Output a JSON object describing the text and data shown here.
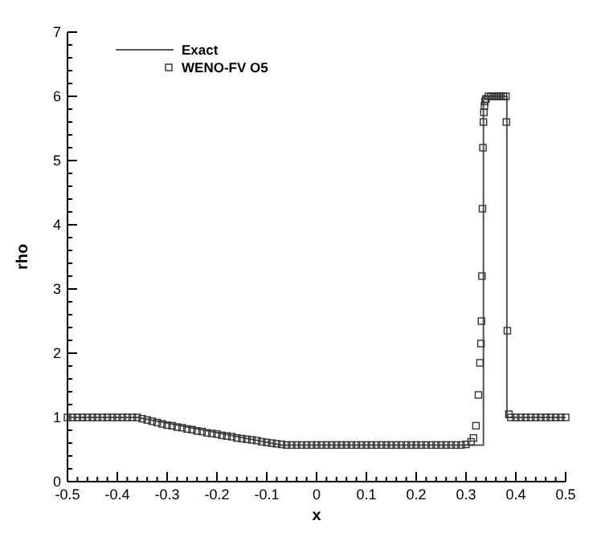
{
  "chart_data": {
    "type": "scatter",
    "xlabel": "x",
    "ylabel": "rho",
    "legend": "top left",
    "grid": false,
    "xlim": [
      -0.5,
      0.5
    ],
    "ylim": [
      0,
      7
    ],
    "xticks": [
      {
        "value": -0.5,
        "label": "-0.5"
      },
      {
        "value": -0.48,
        "label": null
      },
      {
        "value": -0.46,
        "label": null
      },
      {
        "value": -0.44,
        "label": null
      },
      {
        "value": -0.42,
        "label": null
      },
      {
        "value": -0.4,
        "label": "-0.4"
      },
      {
        "value": -0.38,
        "label": null
      },
      {
        "value": -0.36,
        "label": null
      },
      {
        "value": -0.34,
        "label": null
      },
      {
        "value": -0.32,
        "label": null
      },
      {
        "value": -0.3,
        "label": "-0.3"
      },
      {
        "value": -0.28,
        "label": null
      },
      {
        "value": -0.26,
        "label": null
      },
      {
        "value": -0.24,
        "label": null
      },
      {
        "value": -0.22,
        "label": null
      },
      {
        "value": -0.2,
        "label": "-0.2"
      },
      {
        "value": -0.18,
        "label": null
      },
      {
        "value": -0.16,
        "label": null
      },
      {
        "value": -0.14,
        "label": null
      },
      {
        "value": -0.12,
        "label": null
      },
      {
        "value": -0.1,
        "label": "-0.1"
      },
      {
        "value": -0.08,
        "label": null
      },
      {
        "value": -0.06,
        "label": null
      },
      {
        "value": -0.04,
        "label": null
      },
      {
        "value": -0.02,
        "label": null
      },
      0,
      {
        "value": 0.02,
        "label": null
      },
      {
        "value": 0.04,
        "label": null
      },
      {
        "value": 0.06,
        "label": null
      },
      {
        "value": 0.08,
        "label": null
      },
      0.1,
      {
        "value": 0.12,
        "label": null
      },
      {
        "value": 0.14,
        "label": null
      },
      {
        "value": 0.16,
        "label": null
      },
      {
        "value": 0.18,
        "label": null
      },
      0.2,
      {
        "value": 0.22,
        "label": null
      },
      {
        "value": 0.24,
        "label": null
      },
      {
        "value": 0.26,
        "label": null
      },
      {
        "value": 0.28,
        "label": null
      },
      0.3,
      {
        "value": 0.32,
        "label": null
      },
      {
        "value": 0.34,
        "label": null
      },
      {
        "value": 0.36,
        "label": null
      },
      {
        "value": 0.38,
        "label": null
      },
      0.4,
      {
        "value": 0.42,
        "label": null
      },
      {
        "value": 0.44,
        "label": null
      },
      {
        "value": 0.46,
        "label": null
      },
      {
        "value": 0.48,
        "label": null
      },
      0.5
    ],
    "yticks": [
      0,
      {
        "value": 0.2,
        "label": null
      },
      {
        "value": 0.4,
        "label": null
      },
      {
        "value": 0.6,
        "label": null
      },
      {
        "value": 0.8,
        "label": null
      },
      1,
      {
        "value": 1.2,
        "label": null
      },
      {
        "value": 1.4,
        "label": null
      },
      {
        "value": 1.6,
        "label": null
      },
      {
        "value": 1.8,
        "label": null
      },
      2,
      {
        "value": 2.2,
        "label": null
      },
      {
        "value": 2.4,
        "label": null
      },
      {
        "value": 2.6,
        "label": null
      },
      {
        "value": 2.8,
        "label": null
      },
      3,
      {
        "value": 3.2,
        "label": null
      },
      {
        "value": 3.4,
        "label": null
      },
      {
        "value": 3.6,
        "label": null
      },
      {
        "value": 3.8,
        "label": null
      },
      4,
      {
        "value": 4.2,
        "label": null
      },
      {
        "value": 4.4,
        "label": null
      },
      {
        "value": 4.6,
        "label": null
      },
      {
        "value": 4.8,
        "label": null
      },
      5,
      {
        "value": 5.2,
        "label": null
      },
      {
        "value": 5.4,
        "label": null
      },
      {
        "value": 5.6,
        "label": null
      },
      {
        "value": 5.8,
        "label": null
      },
      6,
      {
        "value": 6.2,
        "label": null
      },
      {
        "value": 6.4,
        "label": null
      },
      {
        "value": 6.6,
        "label": null
      },
      {
        "value": 6.8,
        "label": null
      },
      7
    ],
    "series": [
      {
        "name": "Exact",
        "type": "line",
        "color": "#555555",
        "line_style": "solid",
        "marker": "none",
        "x": [
          -0.5,
          -0.36,
          -0.07,
          0.335,
          0.335,
          0.382,
          0.382,
          0.5
        ],
        "values": [
          1,
          1,
          0.57,
          0.57,
          6,
          6,
          1,
          1
        ]
      },
      {
        "name": "WENO-FV O5",
        "color": "#333333",
        "marker": "square",
        "x": [
          -0.5,
          -0.49,
          -0.48,
          -0.47,
          -0.46,
          -0.45,
          -0.44,
          -0.43,
          -0.42,
          -0.41,
          -0.4,
          -0.39,
          -0.38,
          -0.37,
          -0.36,
          -0.35,
          -0.34,
          -0.33,
          -0.32,
          -0.31,
          -0.3,
          -0.29,
          -0.28,
          -0.27,
          -0.26,
          -0.25,
          -0.24,
          -0.23,
          -0.22,
          -0.21,
          -0.2,
          -0.19,
          -0.18,
          -0.17,
          -0.16,
          -0.15,
          -0.14,
          -0.13,
          -0.12,
          -0.11,
          -0.1,
          -0.09,
          -0.08,
          -0.07,
          -0.06,
          -0.05,
          -0.04,
          -0.03,
          -0.02,
          -0.01,
          0,
          0.01,
          0.02,
          0.03,
          0.04,
          0.05,
          0.06,
          0.07,
          0.08,
          0.09,
          0.1,
          0.11,
          0.12,
          0.13,
          0.14,
          0.15,
          0.16,
          0.17,
          0.18,
          0.19,
          0.2,
          0.21,
          0.22,
          0.23,
          0.24,
          0.25,
          0.26,
          0.27,
          0.28,
          0.29,
          0.3,
          0.31,
          0.315,
          0.32,
          0.325,
          0.328,
          0.33,
          0.331,
          0.332,
          0.333,
          0.334,
          0.335,
          0.336,
          0.337,
          0.338,
          0.34,
          0.345,
          0.35,
          0.355,
          0.36,
          0.365,
          0.37,
          0.375,
          0.38,
          0.381,
          0.383,
          0.386,
          0.39,
          0.4,
          0.41,
          0.42,
          0.43,
          0.44,
          0.45,
          0.46,
          0.47,
          0.48,
          0.49,
          0.5
        ],
        "values": [
          1,
          1,
          1,
          1,
          1,
          1,
          1,
          1,
          1,
          1,
          1,
          1,
          1,
          1,
          1,
          0.98,
          0.96,
          0.94,
          0.92,
          0.9,
          0.88,
          0.87,
          0.85,
          0.84,
          0.82,
          0.81,
          0.79,
          0.78,
          0.76,
          0.75,
          0.74,
          0.72,
          0.71,
          0.7,
          0.68,
          0.67,
          0.66,
          0.65,
          0.64,
          0.62,
          0.61,
          0.6,
          0.59,
          0.58,
          0.57,
          0.57,
          0.57,
          0.57,
          0.57,
          0.57,
          0.57,
          0.57,
          0.57,
          0.57,
          0.57,
          0.57,
          0.57,
          0.57,
          0.57,
          0.57,
          0.57,
          0.57,
          0.57,
          0.57,
          0.57,
          0.57,
          0.57,
          0.57,
          0.57,
          0.57,
          0.57,
          0.57,
          0.57,
          0.57,
          0.57,
          0.57,
          0.57,
          0.57,
          0.57,
          0.57,
          0.58,
          0.62,
          0.68,
          0.87,
          1.35,
          1.85,
          2.15,
          2.5,
          3.2,
          4.25,
          5.2,
          5.6,
          5.75,
          5.85,
          5.92,
          5.96,
          6,
          6,
          6,
          6,
          6,
          6,
          6,
          6,
          5.6,
          2.35,
          1.05,
          1,
          1,
          1,
          1,
          1,
          1,
          1,
          1,
          1,
          1,
          1,
          1
        ]
      }
    ]
  }
}
